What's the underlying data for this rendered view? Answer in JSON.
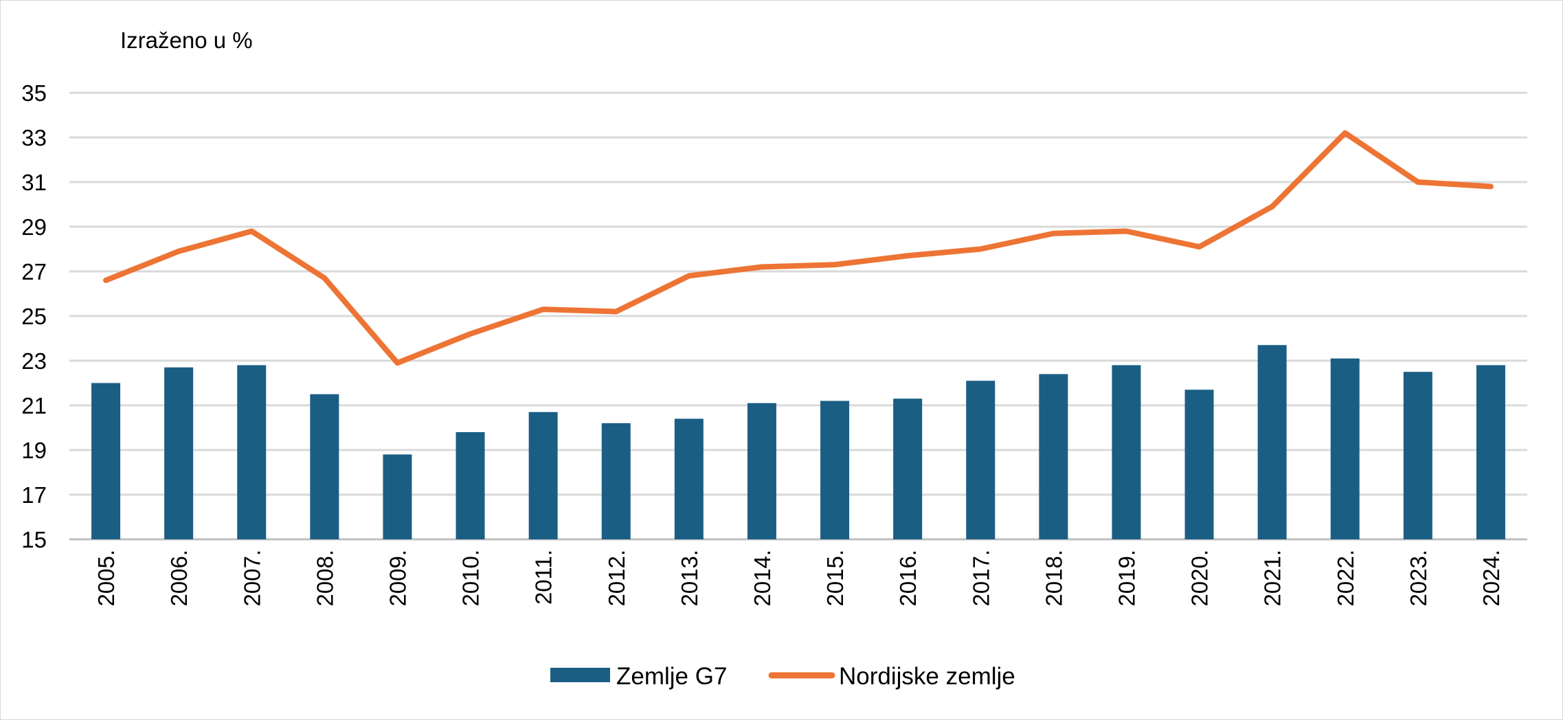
{
  "chart_data": {
    "type": "bar+line",
    "unit_label": "Izraženo u %",
    "categories": [
      "2005.",
      "2006.",
      "2007.",
      "2008.",
      "2009.",
      "2010.",
      "2011.",
      "2012.",
      "2013.",
      "2014.",
      "2015.",
      "2016.",
      "2017.",
      "2018.",
      "2019.",
      "2020.",
      "2021.",
      "2022.",
      "2023.",
      "2024."
    ],
    "series": [
      {
        "name": "Zemlje G7",
        "type": "bar",
        "color": "#1a5e84",
        "values": [
          22.0,
          22.7,
          22.8,
          21.5,
          18.8,
          19.8,
          20.7,
          20.2,
          20.4,
          21.1,
          21.2,
          21.3,
          22.1,
          22.4,
          22.8,
          21.7,
          23.7,
          23.1,
          22.5,
          22.8
        ]
      },
      {
        "name": "Nordijske zemlje",
        "type": "line",
        "color": "#ed7434",
        "values": [
          26.6,
          27.9,
          28.8,
          26.7,
          22.9,
          24.2,
          25.3,
          25.2,
          26.8,
          27.2,
          27.3,
          27.7,
          28.0,
          28.7,
          28.8,
          28.1,
          29.9,
          33.2,
          31.0,
          30.8
        ]
      }
    ],
    "ylim": [
      15,
      35
    ],
    "yticks": [
      15,
      17,
      19,
      21,
      23,
      25,
      27,
      29,
      31,
      33,
      35
    ],
    "grid": true,
    "legend_position": "bottom-center"
  }
}
